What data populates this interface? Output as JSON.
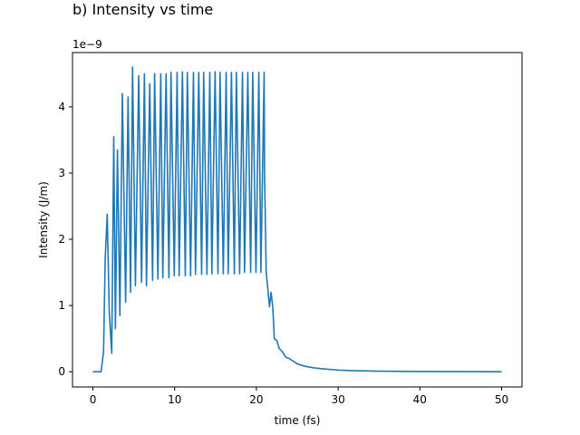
{
  "chart_data": {
    "type": "line",
    "title": "b) Intensity vs time",
    "xlabel": "time (fs)",
    "ylabel": "Intensity (J/m)",
    "y_scale_label": "1e−9",
    "xlim": [
      -2.5,
      52.5
    ],
    "ylim": [
      -0.23,
      4.82
    ],
    "x_ticks": [
      0,
      10,
      20,
      30,
      40,
      50
    ],
    "x_tick_labels": [
      "0",
      "10",
      "20",
      "30",
      "40",
      "50"
    ],
    "y_ticks": [
      0,
      1,
      2,
      3,
      4
    ],
    "y_tick_labels": [
      "0",
      "1",
      "2",
      "3",
      "4"
    ],
    "grid": false,
    "legend": "none",
    "line_color": "#1f77b4",
    "series": [
      {
        "x": [
          0.0,
          1.0,
          1.3,
          1.5,
          1.75,
          2.0,
          2.3,
          2.55,
          2.75,
          3.0,
          3.3,
          3.6,
          4.0,
          4.3,
          4.6,
          4.85,
          5.2,
          5.6,
          5.95,
          6.3,
          6.55,
          6.95,
          7.3,
          7.55,
          7.95,
          8.3,
          8.55,
          8.95,
          9.3,
          9.55,
          9.95,
          10.3,
          10.55,
          10.95,
          11.3,
          11.55,
          11.95,
          12.3,
          12.55,
          12.95,
          13.3,
          13.55,
          13.95,
          14.3,
          14.55,
          14.95,
          15.3,
          15.55,
          15.95,
          16.3,
          16.55,
          16.95,
          17.3,
          17.55,
          17.95,
          18.3,
          18.55,
          18.95,
          19.3,
          19.55,
          19.95,
          20.3,
          20.55,
          20.95,
          21.0,
          21.2,
          21.4,
          21.6,
          21.8,
          22.0,
          22.2,
          22.5,
          22.8,
          23.2,
          23.6,
          24.0,
          24.5,
          25.0,
          26.0,
          27.0,
          28.0,
          29.0,
          30.0,
          32.0,
          35.0,
          40.0,
          45.0,
          50.0
        ],
        "y": [
          0.0,
          0.0,
          0.3,
          1.7,
          2.38,
          0.9,
          0.28,
          3.55,
          0.65,
          3.35,
          0.85,
          4.2,
          1.05,
          4.15,
          1.2,
          4.6,
          1.3,
          4.47,
          1.35,
          4.5,
          1.3,
          4.35,
          1.38,
          4.5,
          1.4,
          4.5,
          1.42,
          4.5,
          1.42,
          4.52,
          1.45,
          4.52,
          1.45,
          4.53,
          1.45,
          4.52,
          1.45,
          4.52,
          1.47,
          4.52,
          1.47,
          4.52,
          1.47,
          4.52,
          1.48,
          4.53,
          1.48,
          4.52,
          1.48,
          4.52,
          1.48,
          4.52,
          1.48,
          4.52,
          1.48,
          4.52,
          1.5,
          4.52,
          1.5,
          4.52,
          1.5,
          4.52,
          1.5,
          4.52,
          3.0,
          1.5,
          1.25,
          0.98,
          1.2,
          0.98,
          0.5,
          0.47,
          0.35,
          0.3,
          0.22,
          0.2,
          0.16,
          0.12,
          0.08,
          0.06,
          0.045,
          0.035,
          0.025,
          0.015,
          0.008,
          0.004,
          0.002,
          0.0
        ]
      }
    ]
  }
}
